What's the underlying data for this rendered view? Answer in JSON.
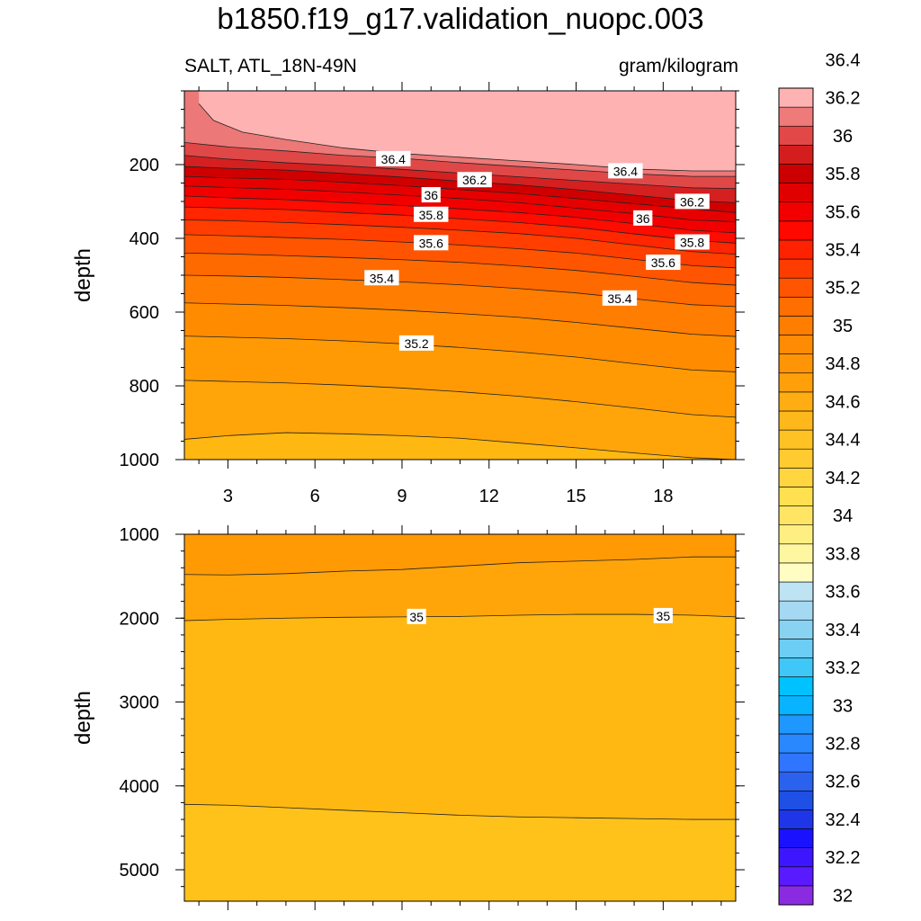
{
  "title": "b1850.f19_g17.validation_nuopc.003",
  "subtitle_left": "SALT, ATL_18N-49N",
  "subtitle_right": "gram/kilogram",
  "chart_data": [
    {
      "type": "contour",
      "panel": "upper",
      "variable": "SALT",
      "units": "gram/kilogram",
      "xlabel": "",
      "ylabel": "depth",
      "xlim": [
        1.5,
        20.5
      ],
      "ylim": [
        0,
        1000
      ],
      "y_reversed": true,
      "x_ticks": [
        3,
        6,
        9,
        12,
        15,
        18
      ],
      "y_ticks": [
        200,
        400,
        600,
        800,
        1000
      ],
      "contour_interval": 0.1,
      "contours": [
        {
          "level": 36.5,
          "points": [
            [
              2.0,
              35
            ],
            [
              2.5,
              80
            ],
            [
              3.5,
              112
            ],
            [
              5,
              132
            ],
            [
              7,
              155
            ],
            [
              9,
              170
            ],
            [
              11,
              180
            ],
            [
              13,
              190
            ],
            [
              15,
              200
            ],
            [
              17,
              212
            ],
            [
              19,
              217
            ],
            [
              20.5,
              217
            ]
          ]
        },
        {
          "level": 36.4,
          "points": [
            [
              1.5,
              140
            ],
            [
              3,
              152
            ],
            [
              5,
              163
            ],
            [
              7,
              175
            ],
            [
              9,
              183
            ],
            [
              11,
              195
            ],
            [
              13,
              205
            ],
            [
              15,
              215
            ],
            [
              17,
              225
            ],
            [
              19,
              232
            ],
            [
              20.5,
              232
            ]
          ]
        },
        {
          "level": 36.3,
          "points": [
            [
              1.5,
              175
            ],
            [
              3,
              185
            ],
            [
              5,
              195
            ],
            [
              7,
              203
            ],
            [
              9,
              213
            ],
            [
              11,
              223
            ],
            [
              13,
              233
            ],
            [
              15,
              243
            ],
            [
              17,
              253
            ],
            [
              19,
              263
            ],
            [
              20.5,
              265
            ]
          ]
        },
        {
          "level": 36.2,
          "points": [
            [
              1.5,
              205
            ],
            [
              3,
              210
            ],
            [
              5,
              215
            ],
            [
              7,
              224
            ],
            [
              9,
              234
            ],
            [
              11,
              245
            ],
            [
              13,
              255
            ],
            [
              15,
              268
            ],
            [
              17,
              283
            ],
            [
              19,
              298
            ],
            [
              20.5,
              303
            ]
          ]
        },
        {
          "level": 36.1,
          "points": [
            [
              1.5,
              232
            ],
            [
              3,
              236
            ],
            [
              5,
              240
            ],
            [
              7,
              248
            ],
            [
              9,
              257
            ],
            [
              11,
              268
            ],
            [
              13,
              278
            ],
            [
              15,
              292
            ],
            [
              17,
              306
            ],
            [
              19,
              320
            ],
            [
              20.5,
              330
            ]
          ]
        },
        {
          "level": 36.0,
          "points": [
            [
              1.5,
              258
            ],
            [
              3,
              262
            ],
            [
              5,
              267
            ],
            [
              7,
              274
            ],
            [
              9,
              283
            ],
            [
              11,
              292
            ],
            [
              13,
              303
            ],
            [
              15,
              318
            ],
            [
              17,
              333
            ],
            [
              19,
              350
            ],
            [
              20.5,
              355
            ]
          ]
        },
        {
          "level": 35.9,
          "points": [
            [
              1.5,
              285
            ],
            [
              3,
              290
            ],
            [
              5,
              295
            ],
            [
              7,
              303
            ],
            [
              9,
              311
            ],
            [
              11,
              320
            ],
            [
              13,
              330
            ],
            [
              15,
              343
            ],
            [
              17,
              360
            ],
            [
              19,
              378
            ],
            [
              20.5,
              385
            ]
          ]
        },
        {
          "level": 35.8,
          "points": [
            [
              1.5,
              315
            ],
            [
              3,
              318
            ],
            [
              5,
              322
            ],
            [
              7,
              330
            ],
            [
              9,
              337
            ],
            [
              11,
              347
            ],
            [
              13,
              357
            ],
            [
              15,
              370
            ],
            [
              17,
              388
            ],
            [
              19,
              405
            ],
            [
              20.5,
              413
            ]
          ]
        },
        {
          "level": 35.7,
          "points": [
            [
              1.5,
              350
            ],
            [
              3,
              352
            ],
            [
              5,
              357
            ],
            [
              7,
              363
            ],
            [
              9,
              370
            ],
            [
              11,
              378
            ],
            [
              13,
              387
            ],
            [
              15,
              400
            ],
            [
              17,
              418
            ],
            [
              19,
              436
            ],
            [
              20.5,
              443
            ]
          ]
        },
        {
          "level": 35.6,
          "points": [
            [
              1.5,
              390
            ],
            [
              3,
              393
            ],
            [
              5,
              398
            ],
            [
              7,
              403
            ],
            [
              9,
              410
            ],
            [
              11,
              418
            ],
            [
              13,
              428
            ],
            [
              15,
              440
            ],
            [
              17,
              457
            ],
            [
              19,
              474
            ],
            [
              20.5,
              480
            ]
          ]
        },
        {
          "level": 35.5,
          "points": [
            [
              1.5,
              440
            ],
            [
              3,
              442
            ],
            [
              5,
              447
            ],
            [
              7,
              452
            ],
            [
              9,
              458
            ],
            [
              11,
              465
            ],
            [
              13,
              475
            ],
            [
              15,
              487
            ],
            [
              17,
              503
            ],
            [
              19,
              520
            ],
            [
              20.5,
              527
            ]
          ]
        },
        {
          "level": 35.4,
          "points": [
            [
              1.5,
              500
            ],
            [
              3,
              502
            ],
            [
              5,
              506
            ],
            [
              7,
              512
            ],
            [
              9,
              518
            ],
            [
              11,
              526
            ],
            [
              13,
              536
            ],
            [
              15,
              548
            ],
            [
              17,
              564
            ],
            [
              19,
              580
            ],
            [
              20.5,
              585
            ]
          ]
        },
        {
          "level": 35.3,
          "points": [
            [
              1.5,
              575
            ],
            [
              3,
              578
            ],
            [
              5,
              582
            ],
            [
              7,
              588
            ],
            [
              9,
              595
            ],
            [
              11,
              604
            ],
            [
              13,
              614
            ],
            [
              15,
              628
            ],
            [
              17,
              644
            ],
            [
              19,
              660
            ],
            [
              20.5,
              666
            ]
          ]
        },
        {
          "level": 35.2,
          "points": [
            [
              1.5,
              665
            ],
            [
              3,
              668
            ],
            [
              5,
              672
            ],
            [
              7,
              678
            ],
            [
              9,
              686
            ],
            [
              11,
              696
            ],
            [
              13,
              708
            ],
            [
              15,
              722
            ],
            [
              17,
              740
            ],
            [
              19,
              757
            ],
            [
              20.5,
              762
            ]
          ]
        },
        {
          "level": 35.1,
          "points": [
            [
              1.5,
              785
            ],
            [
              3,
              788
            ],
            [
              5,
              792
            ],
            [
              7,
              798
            ],
            [
              9,
              806
            ],
            [
              11,
              816
            ],
            [
              13,
              828
            ],
            [
              15,
              843
            ],
            [
              17,
              860
            ],
            [
              19,
              878
            ],
            [
              20.5,
              885
            ]
          ]
        },
        {
          "level": 35.0,
          "points": [
            [
              1.5,
              945
            ],
            [
              3,
              935
            ],
            [
              5,
              927
            ],
            [
              7,
              930
            ],
            [
              9,
              935
            ],
            [
              11,
              942
            ],
            [
              13,
              955
            ],
            [
              15,
              968
            ],
            [
              17,
              982
            ],
            [
              19,
              995
            ],
            [
              20.5,
              1000
            ]
          ]
        }
      ],
      "labels": [
        {
          "text": "36.4",
          "x": 8.7,
          "y": 185
        },
        {
          "text": "36.4",
          "x": 16.7,
          "y": 218
        },
        {
          "text": "36.2",
          "x": 11.5,
          "y": 242
        },
        {
          "text": "36.2",
          "x": 19.0,
          "y": 301
        },
        {
          "text": "36",
          "x": 10.0,
          "y": 283
        },
        {
          "text": "36",
          "x": 17.3,
          "y": 346
        },
        {
          "text": "35.8",
          "x": 10.0,
          "y": 336
        },
        {
          "text": "35.8",
          "x": 19.0,
          "y": 411
        },
        {
          "text": "35.6",
          "x": 10.0,
          "y": 413
        },
        {
          "text": "35.6",
          "x": 18.0,
          "y": 466
        },
        {
          "text": "35.4",
          "x": 8.3,
          "y": 508
        },
        {
          "text": "35.4",
          "x": 16.5,
          "y": 563
        },
        {
          "text": "35.2",
          "x": 9.5,
          "y": 685
        }
      ]
    },
    {
      "type": "contour",
      "panel": "lower",
      "variable": "SALT",
      "units": "gram/kilogram",
      "xlabel": "",
      "ylabel": "depth",
      "xlim": [
        1.5,
        20.5
      ],
      "ylim": [
        1000,
        5375
      ],
      "y_reversed": true,
      "y_ticks": [
        1000,
        2000,
        3000,
        4000,
        5000
      ],
      "contour_interval": 0.1,
      "contours": [
        {
          "level": 35.1,
          "points": [
            [
              1.5,
              1480
            ],
            [
              3,
              1485
            ],
            [
              5,
              1470
            ],
            [
              7,
              1440
            ],
            [
              9,
              1420
            ],
            [
              11,
              1380
            ],
            [
              13,
              1340
            ],
            [
              15,
              1320
            ],
            [
              17,
              1300
            ],
            [
              19,
              1270
            ],
            [
              20.5,
              1270
            ]
          ]
        },
        {
          "level": 35.0,
          "points": [
            [
              1.5,
              2030
            ],
            [
              3,
              2015
            ],
            [
              5,
              2000
            ],
            [
              7,
              1990
            ],
            [
              9,
              1985
            ],
            [
              11,
              1980
            ],
            [
              13,
              1965
            ],
            [
              15,
              1955
            ],
            [
              17,
              1955
            ],
            [
              19,
              1965
            ],
            [
              20.5,
              1985
            ]
          ]
        },
        {
          "level": 34.9,
          "points": [
            [
              1.5,
              4220
            ],
            [
              3,
              4230
            ],
            [
              5,
              4260
            ],
            [
              7,
              4290
            ],
            [
              9,
              4320
            ],
            [
              11,
              4350
            ],
            [
              13,
              4370
            ],
            [
              15,
              4380
            ],
            [
              17,
              4390
            ],
            [
              19,
              4400
            ],
            [
              20.5,
              4400
            ]
          ]
        }
      ],
      "labels": [
        {
          "text": "35",
          "x": 9.5,
          "y": 1985
        },
        {
          "text": "35",
          "x": 18.0,
          "y": 1975
        }
      ]
    }
  ],
  "colorbar": {
    "levels": [
      "32",
      "32.2",
      "32.4",
      "32.6",
      "32.8",
      "33",
      "33.2",
      "33.4",
      "33.6",
      "33.8",
      "34",
      "34.2",
      "34.4",
      "34.6",
      "34.8",
      "35",
      "35.2",
      "35.4",
      "35.6",
      "35.8",
      "36",
      "36.2",
      "36.4"
    ],
    "colors": [
      "#8a2be2",
      "#5a1aff",
      "#3d16ff",
      "#1a12ff",
      "#1e36e8",
      "#1e50e6",
      "#2a62ee",
      "#2f75ff",
      "#2a88ff",
      "#1e98ff",
      "#08b4ff",
      "#00c2ff",
      "#3fc8f7",
      "#6ccef5",
      "#88d2f2",
      "#a5d8f2",
      "#bee3f2",
      "#fffdc2",
      "#fff7a0",
      "#ffef82",
      "#ffe563",
      "#ffe050",
      "#ffd540",
      "#ffcb30",
      "#ffc225",
      "#ffb81c",
      "#ffad13",
      "#ffa00b",
      "#ff9506",
      "#ff8a03",
      "#ff7e00",
      "#ff6e00",
      "#ff5400",
      "#ff3c00",
      "#ff2200",
      "#ff0800",
      "#f20000",
      "#e00000",
      "#cc0000",
      "#d41e1e",
      "#e24848",
      "#ee7a7a",
      "#ffb2b2"
    ]
  }
}
